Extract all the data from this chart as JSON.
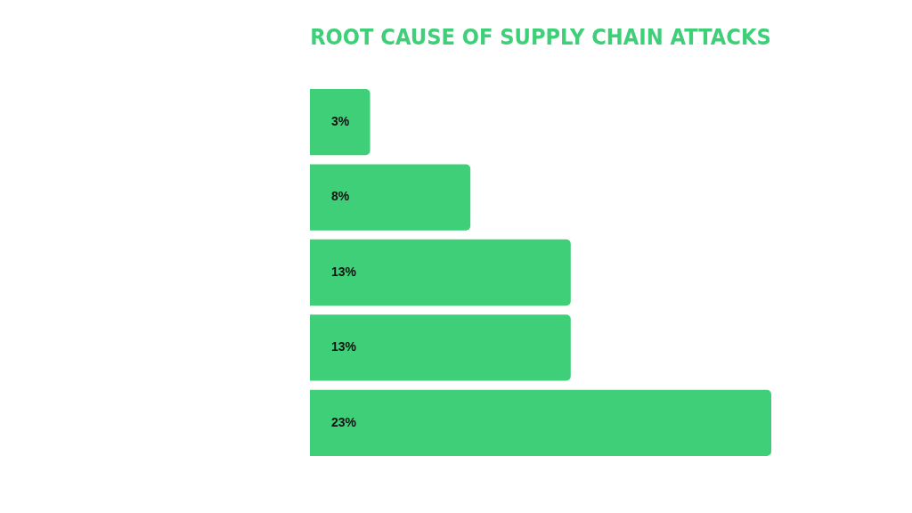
{
  "chart_data": {
    "type": "bar",
    "orientation": "horizontal",
    "title": "ROOT CAUSE OF SUPPLY CHAIN ATTACKS",
    "categories": [
      null,
      null,
      null,
      null,
      null
    ],
    "values": [
      3,
      8,
      13,
      13,
      23
    ],
    "value_labels": [
      "3%",
      "8%",
      "13%",
      "13%",
      "23%"
    ],
    "color": "#3ecf78",
    "legend": false
  }
}
